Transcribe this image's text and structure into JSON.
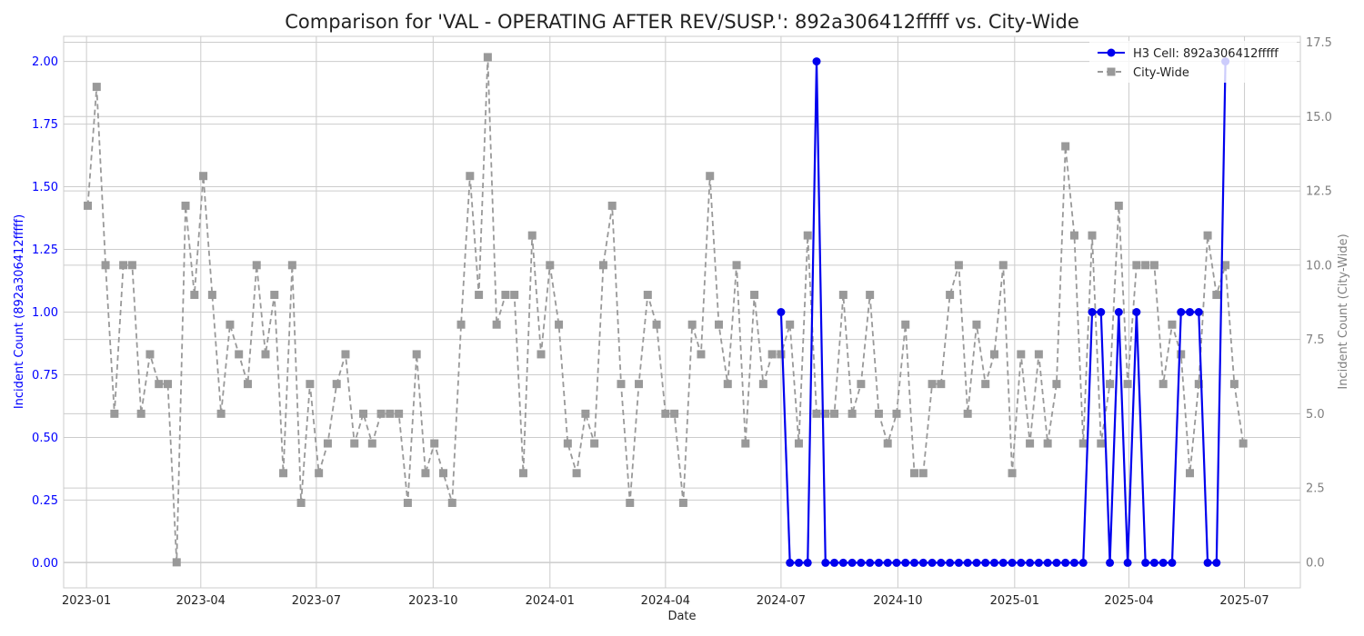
{
  "chart_data": {
    "type": "line",
    "title": "Comparison for 'VAL - OPERATING AFTER REV/SUSP.': 892a306412fffff vs. City-Wide",
    "xlabel": "Date",
    "ylabel_left": "Incident Count (892a306412fffff)",
    "ylabel_right": "Incident Count (City-Wide)",
    "x_ticks": [
      "2023-01",
      "2023-04",
      "2023-07",
      "2023-10",
      "2024-01",
      "2024-04",
      "2024-07",
      "2024-10",
      "2025-01",
      "2025-04",
      "2025-07"
    ],
    "x_range": [
      "2022-12-14",
      "2025-08-14"
    ],
    "y_left": {
      "lim": [
        -0.1,
        2.1
      ],
      "ticks": [
        "0.00",
        "0.25",
        "0.50",
        "0.75",
        "1.00",
        "1.25",
        "1.50",
        "1.75",
        "2.00"
      ]
    },
    "y_right": {
      "lim": [
        -0.86,
        17.7
      ],
      "ticks": [
        "0.0",
        "2.5",
        "5.0",
        "7.5",
        "10.0",
        "12.5",
        "15.0",
        "17.5"
      ]
    },
    "grid": true,
    "legend_position": "top-right",
    "colors": {
      "h3": "#0000ee",
      "city": "#999999",
      "left_axis": "#0000ff",
      "right_axis": "#808080"
    },
    "series": [
      {
        "name": "H3 Cell: 892a306412fffff",
        "axis": "left",
        "start": "2024-07-01",
        "step_days": 7,
        "values": [
          1,
          0,
          0,
          0,
          2,
          0,
          0,
          0,
          0,
          0,
          0,
          0,
          0,
          0,
          0,
          0,
          0,
          0,
          0,
          0,
          0,
          0,
          0,
          0,
          0,
          0,
          0,
          0,
          0,
          0,
          0,
          0,
          0,
          0,
          0,
          1,
          1,
          0,
          1,
          0,
          1,
          0,
          0,
          0,
          0,
          1,
          1,
          1,
          0,
          0,
          2
        ]
      },
      {
        "name": "City-Wide",
        "axis": "right",
        "start": "2023-01-02",
        "step_days": 7,
        "values": [
          12,
          16,
          10,
          5,
          10,
          10,
          5,
          7,
          6,
          6,
          0,
          12,
          9,
          13,
          9,
          5,
          8,
          7,
          6,
          10,
          7,
          9,
          3,
          10,
          2,
          6,
          3,
          4,
          6,
          7,
          4,
          5,
          4,
          5,
          5,
          5,
          2,
          7,
          3,
          4,
          3,
          2,
          8,
          13,
          9,
          17,
          8,
          9,
          9,
          3,
          11,
          7,
          10,
          8,
          4,
          3,
          5,
          4,
          10,
          12,
          6,
          2,
          6,
          9,
          8,
          5,
          5,
          2,
          8,
          7,
          13,
          8,
          6,
          10,
          4,
          9,
          6,
          7,
          7,
          8,
          4,
          11,
          5,
          5,
          5,
          9,
          5,
          6,
          9,
          5,
          4,
          5,
          8,
          3,
          3,
          6,
          6,
          9,
          10,
          5,
          8,
          6,
          7,
          10,
          3,
          7,
          4,
          7,
          4,
          6,
          14,
          11,
          4,
          11,
          4,
          6,
          12,
          6,
          10,
          10,
          10,
          6,
          8,
          7,
          3,
          6,
          11,
          9,
          10,
          6,
          4
        ]
      }
    ]
  }
}
